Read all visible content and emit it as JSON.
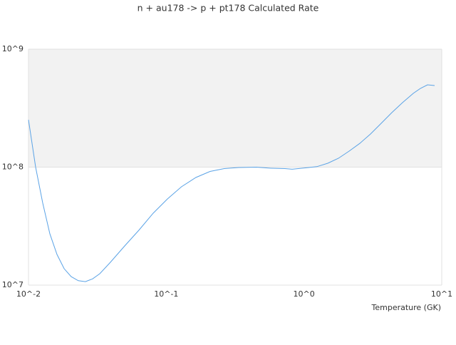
{
  "chart_data": {
    "type": "line",
    "title": "n + au178 -> p + pt178 Calculated Rate",
    "x_label": "Temperature (GK)",
    "log_x": true,
    "log_y": true,
    "xlim": [
      0.01,
      10
    ],
    "ylim": [
      10000000,
      1000000000
    ],
    "xticks": [
      {
        "value": 0.01,
        "label": "10^-2"
      },
      {
        "value": 0.1,
        "label": "10^-1"
      },
      {
        "value": 1,
        "label": "10^0"
      },
      {
        "value": 10,
        "label": "10^1"
      }
    ],
    "yticks": [
      {
        "value": 10000000,
        "label": "10^7"
      },
      {
        "value": 100000000,
        "label": "10^8"
      },
      {
        "value": 1000000000,
        "label": "10^9"
      }
    ],
    "band_color": "#f2f2f2",
    "series": [
      {
        "color": "#5ba3e6",
        "x": [
          0.01,
          0.01127,
          0.01269,
          0.01429,
          0.0161,
          0.01815,
          0.0204,
          0.023,
          0.0259,
          0.0292,
          0.0329,
          0.0393,
          0.0499,
          0.0633,
          0.0804,
          0.102,
          0.129,
          0.164,
          0.208,
          0.264,
          0.336,
          0.452,
          0.574,
          0.728,
          0.82,
          1.04,
          1.24,
          1.49,
          1.78,
          2.13,
          2.54,
          3.04,
          3.63,
          4.34,
          5.19,
          6.21,
          7.0,
          7.88,
          8.88
        ],
        "values": [
          252000000,
          100000000,
          49500000,
          27200000,
          18200000,
          13800000,
          11800000,
          10900000,
          10700000,
          11300000,
          12500000,
          15600000,
          21500000,
          29200000,
          40700000,
          53800000,
          68200000,
          81700000,
          92000000,
          97300000,
          99300000,
          100000000,
          98000000,
          97300000,
          96000000,
          98700000,
          101000000,
          108000000,
          119000000,
          137000000,
          159000000,
          191000000,
          235000000,
          290000000,
          352000000,
          422000000,
          465000000,
          499000000,
          492000000
        ]
      }
    ]
  }
}
